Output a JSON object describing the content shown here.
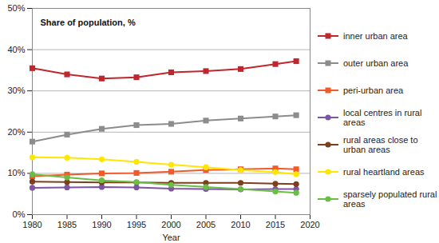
{
  "chart_data": {
    "type": "line",
    "title": "Share of population, %",
    "x_label": "Year",
    "x": [
      1980,
      1985,
      1990,
      1995,
      2000,
      2005,
      2010,
      2015,
      2018
    ],
    "xlim": [
      1980,
      2020
    ],
    "xticks": [
      1980,
      1985,
      1990,
      1995,
      2000,
      2005,
      2010,
      2015,
      2020
    ],
    "ylim": [
      0,
      50
    ],
    "yticks": [
      {
        "value": 0,
        "label": "0%"
      },
      {
        "value": 10,
        "label": "10%"
      },
      {
        "value": 20,
        "label": "20%"
      },
      {
        "value": 30,
        "label": "30%"
      },
      {
        "value": 40,
        "label": "40%"
      },
      {
        "value": 50,
        "label": "50%"
      }
    ],
    "grid": true,
    "legend": "right",
    "series": [
      {
        "name": "inner urban area",
        "color": "#c0272d",
        "marker": "square",
        "values": [
          35.5,
          34.0,
          33.0,
          33.3,
          34.5,
          34.8,
          35.3,
          36.5,
          37.2
        ]
      },
      {
        "name": "outer urban area",
        "color": "#8c8c8c",
        "marker": "square",
        "values": [
          17.7,
          19.4,
          20.8,
          21.7,
          22.0,
          22.8,
          23.3,
          23.8,
          24.1
        ]
      },
      {
        "name": "peri-urban area",
        "color": "#f15a29",
        "marker": "square",
        "values": [
          9.3,
          9.7,
          10.0,
          10.1,
          10.4,
          10.8,
          11.0,
          11.2,
          11.0
        ]
      },
      {
        "name": "local centres in rural areas",
        "color": "#7e55a3",
        "marker": "circle",
        "values": [
          6.5,
          6.6,
          6.7,
          6.6,
          6.3,
          6.2,
          6.1,
          6.2,
          6.2
        ]
      },
      {
        "name": "rural areas close to urban areas",
        "color": "#7b3f1d",
        "marker": "circle",
        "values": [
          8.0,
          7.9,
          7.8,
          7.8,
          7.7,
          7.7,
          7.7,
          7.5,
          7.4
        ]
      },
      {
        "name": "rural heartland areas",
        "color": "#ffe600",
        "marker": "circle",
        "values": [
          13.9,
          13.8,
          13.4,
          12.8,
          12.1,
          11.5,
          10.8,
          10.3,
          9.8
        ]
      },
      {
        "name": "sparsely populated rural areas",
        "color": "#6abd45",
        "marker": "circle",
        "values": [
          9.8,
          9.0,
          8.3,
          7.9,
          7.2,
          6.7,
          6.2,
          5.6,
          5.3
        ]
      }
    ]
  }
}
